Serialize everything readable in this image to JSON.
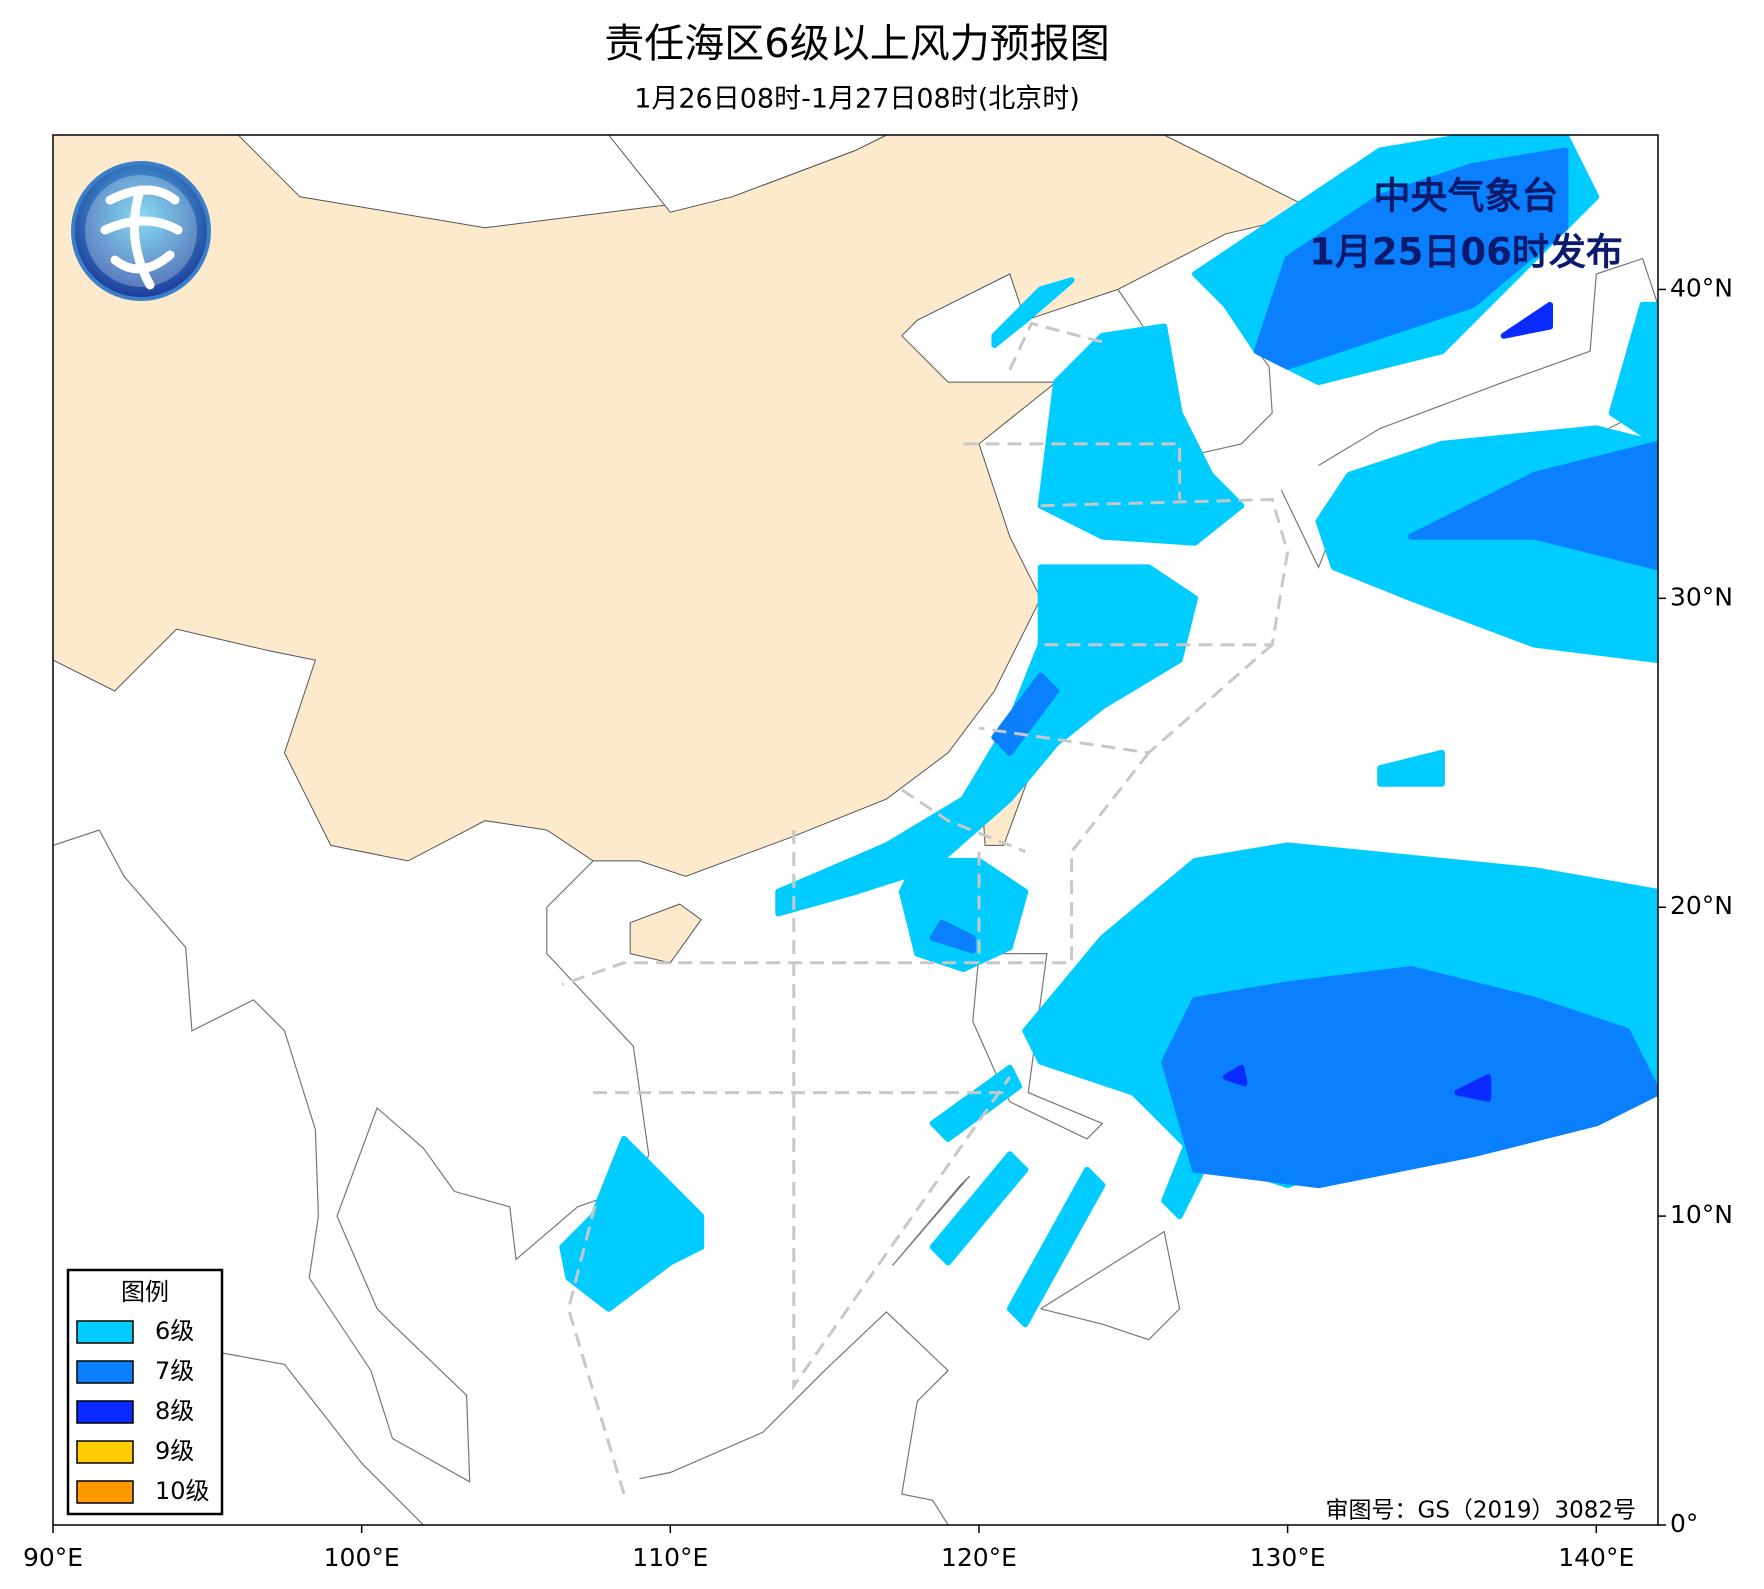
{
  "title": "责任海区6级以上风力预报图",
  "subtitle": "1月26日08时-1月27日08时(北京时)",
  "issuer": "中央气象台",
  "issue_time": "1月25日06时发布",
  "legend": {
    "title": "图例",
    "items": [
      {
        "label": "6级",
        "color": "#00ccff"
      },
      {
        "label": "7级",
        "color": "#0a80ff"
      },
      {
        "label": "8级",
        "color": "#0a2aff"
      },
      {
        "label": "9级",
        "color": "#ffcc00"
      },
      {
        "label": "10级",
        "color": "#ff9900"
      }
    ]
  },
  "map": {
    "xlim": [
      90,
      142
    ],
    "ylim": [
      0,
      45
    ],
    "xticks": [
      {
        "value": 90,
        "label": "90°E"
      },
      {
        "value": 100,
        "label": "100°E"
      },
      {
        "value": 110,
        "label": "110°E"
      },
      {
        "value": 120,
        "label": "120°E"
      },
      {
        "value": 130,
        "label": "130°E"
      },
      {
        "value": 140,
        "label": "140°E"
      }
    ],
    "yticks": [
      {
        "value": 0,
        "label": "0°"
      },
      {
        "value": 10,
        "label": "10°N"
      },
      {
        "value": 20,
        "label": "20°N"
      },
      {
        "value": 30,
        "label": "30°N"
      },
      {
        "value": 40,
        "label": "40°N"
      }
    ]
  },
  "review_number": "审图号：GS（2019）3082号"
}
